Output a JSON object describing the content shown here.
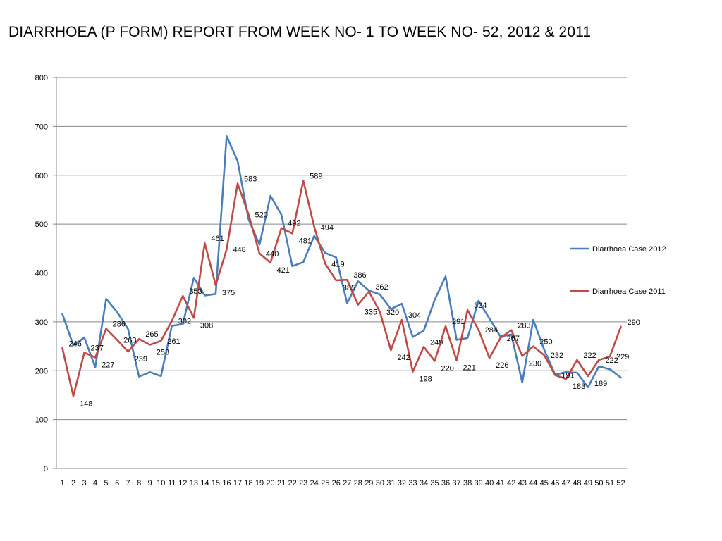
{
  "chart_data": {
    "type": "line",
    "title": "DIARRHOEA  (P FORM) REPORT FROM WEEK NO- 1 TO WEEK NO- 52, 2012 & 2011",
    "xlabel": "",
    "ylabel": "",
    "ylim": [
      0,
      800
    ],
    "yticks": [
      0,
      100,
      200,
      300,
      400,
      500,
      600,
      700,
      800
    ],
    "grid": true,
    "legend_position": "right",
    "categories": [
      "1",
      "2",
      "3",
      "4",
      "5",
      "6",
      "7",
      "8",
      "9",
      "10",
      "11",
      "12",
      "13",
      "14",
      "15",
      "16",
      "17",
      "18",
      "19",
      "20",
      "21",
      "22",
      "23",
      "24",
      "25",
      "26",
      "27",
      "28",
      "29",
      "30",
      "31",
      "32",
      "33",
      "34",
      "35",
      "36",
      "37",
      "38",
      "39",
      "40",
      "41",
      "42",
      "43",
      "44",
      "45",
      "46",
      "47",
      "48",
      "49",
      "50",
      "51",
      "52"
    ],
    "series": [
      {
        "name": "Diarrhoea Case 2012",
        "color": "#4a7ebb",
        "values": [
          316,
          252,
          268,
          207,
          347,
          320,
          285,
          188,
          197,
          189,
          292,
          295,
          390,
          354,
          357,
          680,
          629,
          510,
          458,
          558,
          519,
          414,
          422,
          476,
          441,
          432,
          338,
          383,
          364,
          356,
          326,
          337,
          269,
          282,
          345,
          393,
          263,
          267,
          343,
          307,
          270,
          274,
          176,
          304,
          243,
          192,
          197,
          196,
          166,
          209,
          203,
          186
        ]
      },
      {
        "name": "Diarrhoea Case 2011",
        "color": "#be4b48",
        "values": [
          246,
          148,
          237,
          227,
          286,
          263,
          239,
          265,
          253,
          261,
          302,
          353,
          308,
          461,
          375,
          448,
          583,
          520,
          440,
          421,
          492,
          481,
          589,
          494,
          419,
          385,
          386,
          335,
          362,
          320,
          242,
          304,
          198,
          249,
          220,
          291,
          221,
          324,
          284,
          226,
          267,
          283,
          230,
          250,
          232,
          191,
          183,
          222,
          189,
          222,
          229,
          290
        ]
      }
    ],
    "data_labels": {
      "series": "Diarrhoea Case 2011",
      "values": [
        246,
        148,
        237,
        227,
        286,
        263,
        239,
        265,
        253,
        261,
        302,
        353,
        308,
        461,
        375,
        448,
        583,
        520,
        440,
        421,
        492,
        481,
        589,
        494,
        419,
        385,
        386,
        335,
        362,
        320,
        242,
        304,
        198,
        249,
        220,
        291,
        221,
        324,
        284,
        226,
        267,
        283,
        230,
        250,
        232,
        191,
        183,
        222,
        189,
        222,
        229,
        290
      ]
    }
  }
}
